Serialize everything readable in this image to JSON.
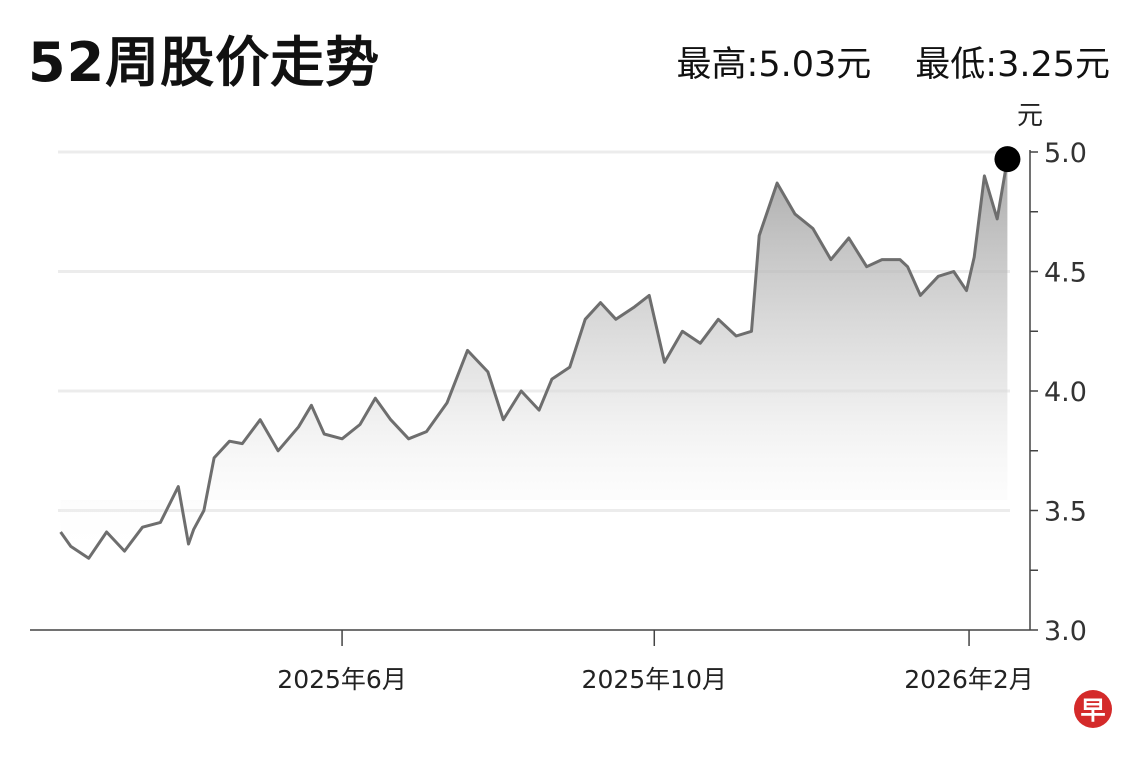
{
  "title": "52周股价走势",
  "stats": {
    "high_label": "最高:",
    "high_value": "5.03元",
    "low_label": "最低:",
    "low_value": "3.25元"
  },
  "logo": {
    "text": "早",
    "color": "#d42a2a"
  },
  "chart_data": {
    "type": "area",
    "title": "",
    "ylabel": "元",
    "xlabel": "",
    "ylim": [
      3.0,
      5.0
    ],
    "yticks": [
      3.0,
      3.5,
      4.0,
      4.5,
      5.0
    ],
    "ytick_labels": [
      "3.0",
      "3.5",
      "4.0",
      "4.5",
      "5.0"
    ],
    "xticks": [
      {
        "date": "2025-06-01",
        "label": "2025年6月"
      },
      {
        "date": "2025-10-01",
        "label": "2025年10月"
      },
      {
        "date": "2026-02-01",
        "label": "2026年2月"
      }
    ],
    "xlim": [
      "2025-02-10",
      "2026-02-17"
    ],
    "grid": true,
    "line_color": "#6e6e6e",
    "end_marker_color": "#000000",
    "series": [
      {
        "x": [
          "2025-02-11",
          "2025-02-15",
          "2025-02-22",
          "2025-03-01",
          "2025-03-08",
          "2025-03-15",
          "2025-03-22",
          "2025-03-29",
          "2025-04-02",
          "2025-04-04",
          "2025-04-08",
          "2025-04-12",
          "2025-04-18",
          "2025-04-23",
          "2025-04-30",
          "2025-05-07",
          "2025-05-15",
          "2025-05-20",
          "2025-05-25",
          "2025-06-01",
          "2025-06-08",
          "2025-06-14",
          "2025-06-20",
          "2025-06-27",
          "2025-07-04",
          "2025-07-12",
          "2025-07-20",
          "2025-07-28",
          "2025-08-03",
          "2025-08-10",
          "2025-08-17",
          "2025-08-22",
          "2025-08-29",
          "2025-09-04",
          "2025-09-10",
          "2025-09-16",
          "2025-09-23",
          "2025-09-29",
          "2025-10-05",
          "2025-10-12",
          "2025-10-19",
          "2025-10-26",
          "2025-11-02",
          "2025-11-08",
          "2025-11-11",
          "2025-11-18",
          "2025-11-25",
          "2025-12-02",
          "2025-12-09",
          "2025-12-16",
          "2025-12-23",
          "2025-12-29",
          "2026-01-05",
          "2026-01-08",
          "2026-01-13",
          "2026-01-20",
          "2026-01-26",
          "2026-01-31",
          "2026-02-03",
          "2026-02-07",
          "2026-02-12",
          "2026-02-16"
        ],
        "values": [
          3.41,
          3.35,
          3.3,
          3.41,
          3.33,
          3.43,
          3.45,
          3.6,
          3.36,
          3.42,
          3.5,
          3.72,
          3.79,
          3.78,
          3.88,
          3.75,
          3.85,
          3.94,
          3.82,
          3.8,
          3.86,
          3.97,
          3.88,
          3.8,
          3.83,
          3.95,
          4.17,
          4.08,
          3.88,
          4.0,
          3.92,
          4.05,
          4.1,
          4.3,
          4.37,
          4.3,
          4.35,
          4.4,
          4.12,
          4.25,
          4.2,
          4.3,
          4.23,
          4.25,
          4.65,
          4.87,
          4.74,
          4.68,
          4.55,
          4.64,
          4.52,
          4.55,
          4.55,
          4.52,
          4.4,
          4.48,
          4.5,
          4.42,
          4.56,
          4.9,
          4.72,
          4.97
        ]
      }
    ]
  }
}
